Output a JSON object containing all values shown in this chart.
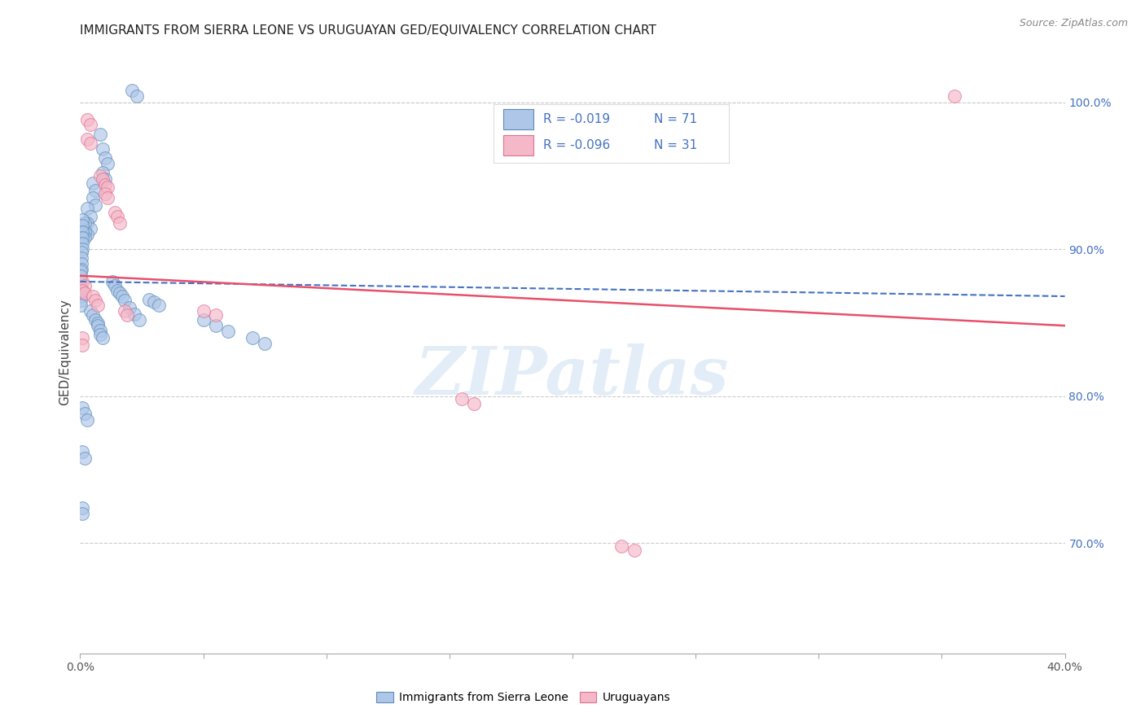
{
  "title": "IMMIGRANTS FROM SIERRA LEONE VS URUGUAYAN GED/EQUIVALENCY CORRELATION CHART",
  "source": "Source: ZipAtlas.com",
  "ylabel_label": "GED/Equivalency",
  "xlim": [
    0.0,
    0.4
  ],
  "ylim": [
    0.625,
    1.035
  ],
  "xtick_positions": [
    0.0,
    0.05,
    0.1,
    0.15,
    0.2,
    0.25,
    0.3,
    0.35,
    0.4
  ],
  "xtick_labels": [
    "0.0%",
    "",
    "",
    "",
    "",
    "",
    "",
    "",
    "40.0%"
  ],
  "ytick_right_vals": [
    0.7,
    0.8,
    0.9,
    1.0
  ],
  "ytick_right_labels": [
    "70.0%",
    "80.0%",
    "90.0%",
    "100.0%"
  ],
  "blue_color": "#AEC6E8",
  "pink_color": "#F4B8C8",
  "blue_edge_color": "#5B8DB8",
  "pink_edge_color": "#E07090",
  "blue_line_color": "#4472C4",
  "pink_line_color": "#E8506A",
  "legend_text_color": "#4472C4",
  "legend_label_blue": "Immigrants from Sierra Leone",
  "legend_label_pink": "Uruguayans",
  "watermark": "ZIPatlas",
  "blue_x": [
    0.021,
    0.023,
    0.008,
    0.009,
    0.01,
    0.011,
    0.009,
    0.01,
    0.005,
    0.006,
    0.005,
    0.006,
    0.003,
    0.004,
    0.003,
    0.004,
    0.003,
    0.002,
    0.002,
    0.002,
    0.001,
    0.001,
    0.001,
    0.001,
    0.001,
    0.0008,
    0.0005,
    0.0005,
    0.0005,
    0.0005,
    0.0003,
    0.0003,
    0.0003,
    0.0003,
    0.0002,
    0.0002,
    0.0002,
    0.0002,
    0.013,
    0.014,
    0.015,
    0.016,
    0.017,
    0.018,
    0.02,
    0.022,
    0.024,
    0.05,
    0.055,
    0.06,
    0.07,
    0.075,
    0.001,
    0.002,
    0.003,
    0.001,
    0.002,
    0.001,
    0.001,
    0.028,
    0.03,
    0.032,
    0.004,
    0.005,
    0.006,
    0.007,
    0.007,
    0.008,
    0.008,
    0.009
  ],
  "blue_y": [
    1.008,
    1.004,
    0.978,
    0.968,
    0.962,
    0.958,
    0.952,
    0.948,
    0.945,
    0.94,
    0.935,
    0.93,
    0.928,
    0.922,
    0.918,
    0.914,
    0.91,
    0.918,
    0.912,
    0.908,
    0.92,
    0.916,
    0.912,
    0.908,
    0.904,
    0.9,
    0.898,
    0.894,
    0.89,
    0.886,
    0.885,
    0.882,
    0.878,
    0.874,
    0.87,
    0.868,
    0.865,
    0.862,
    0.878,
    0.875,
    0.872,
    0.87,
    0.868,
    0.865,
    0.86,
    0.856,
    0.852,
    0.852,
    0.848,
    0.844,
    0.84,
    0.836,
    0.792,
    0.788,
    0.784,
    0.762,
    0.758,
    0.724,
    0.72,
    0.866,
    0.864,
    0.862,
    0.858,
    0.855,
    0.852,
    0.85,
    0.848,
    0.845,
    0.842,
    0.84
  ],
  "pink_x": [
    0.003,
    0.004,
    0.003,
    0.004,
    0.008,
    0.009,
    0.01,
    0.011,
    0.01,
    0.011,
    0.014,
    0.015,
    0.016,
    0.001,
    0.002,
    0.001,
    0.002,
    0.005,
    0.006,
    0.007,
    0.018,
    0.019,
    0.05,
    0.055,
    0.155,
    0.16,
    0.22,
    0.225,
    0.355,
    0.001,
    0.001
  ],
  "pink_y": [
    0.988,
    0.985,
    0.975,
    0.972,
    0.95,
    0.948,
    0.944,
    0.942,
    0.938,
    0.935,
    0.925,
    0.922,
    0.918,
    0.878,
    0.875,
    0.872,
    0.87,
    0.868,
    0.865,
    0.862,
    0.858,
    0.855,
    0.858,
    0.855,
    0.798,
    0.795,
    0.698,
    0.695,
    1.004,
    0.84,
    0.835
  ],
  "blue_trend_x": [
    0.0,
    0.4
  ],
  "blue_trend_y": [
    0.878,
    0.868
  ],
  "pink_trend_x": [
    0.0,
    0.4
  ],
  "pink_trend_y": [
    0.882,
    0.848
  ]
}
